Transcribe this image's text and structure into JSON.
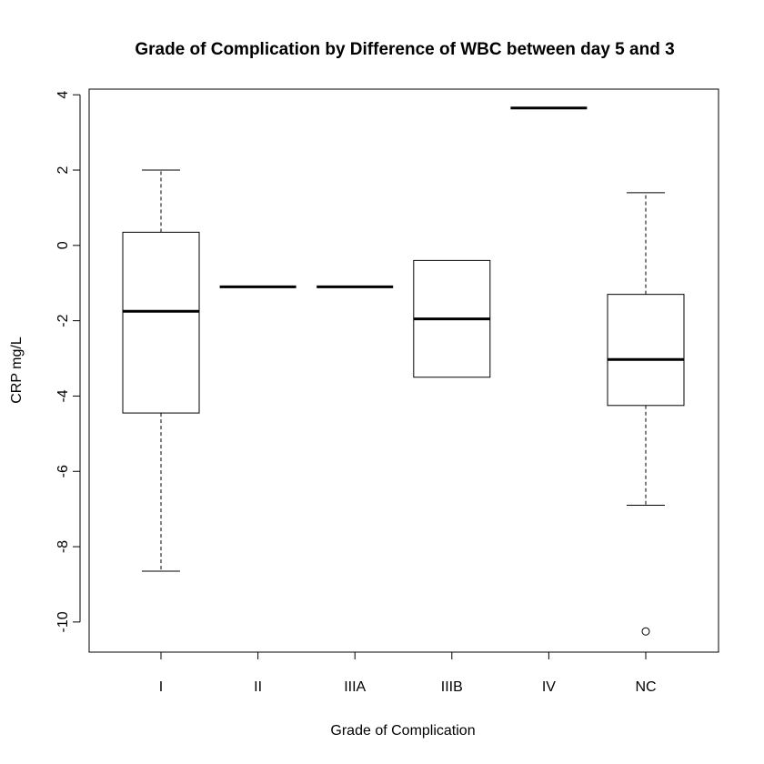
{
  "chart_data": {
    "type": "boxplot",
    "title": "Grade of Complication by Difference of WBC between day 5 and 3",
    "xlabel": "Grade of Complication",
    "ylabel": "CRP mg/L",
    "ylim": [
      -10.8,
      4.15
    ],
    "yticks": [
      4,
      2,
      0,
      -2,
      -4,
      -6,
      -8,
      -10
    ],
    "categories": [
      "I",
      "II",
      "IIIA",
      "IIIB",
      "IV",
      "NC"
    ],
    "boxes": [
      {
        "category": "I",
        "whisker_low": -8.65,
        "q1": -4.45,
        "median": -1.75,
        "q3": 0.35,
        "whisker_high": 2.0,
        "outliers": []
      },
      {
        "category": "II",
        "whisker_low": -1.1,
        "q1": -1.1,
        "median": -1.1,
        "q3": -1.1,
        "whisker_high": -1.1,
        "outliers": []
      },
      {
        "category": "IIIA",
        "whisker_low": -1.1,
        "q1": -1.1,
        "median": -1.1,
        "q3": -1.1,
        "whisker_high": -1.1,
        "outliers": []
      },
      {
        "category": "IIIB",
        "whisker_low": -3.5,
        "q1": -3.5,
        "median": -1.95,
        "q3": -0.4,
        "whisker_high": -0.4,
        "outliers": []
      },
      {
        "category": "IV",
        "whisker_low": 3.65,
        "q1": 3.65,
        "median": 3.65,
        "q3": 3.65,
        "whisker_high": 3.65,
        "outliers": []
      },
      {
        "category": "NC",
        "whisker_low": -6.9,
        "q1": -4.25,
        "median": -3.03,
        "q3": -1.3,
        "whisker_high": 1.4,
        "outliers": [
          -10.25
        ]
      }
    ]
  }
}
